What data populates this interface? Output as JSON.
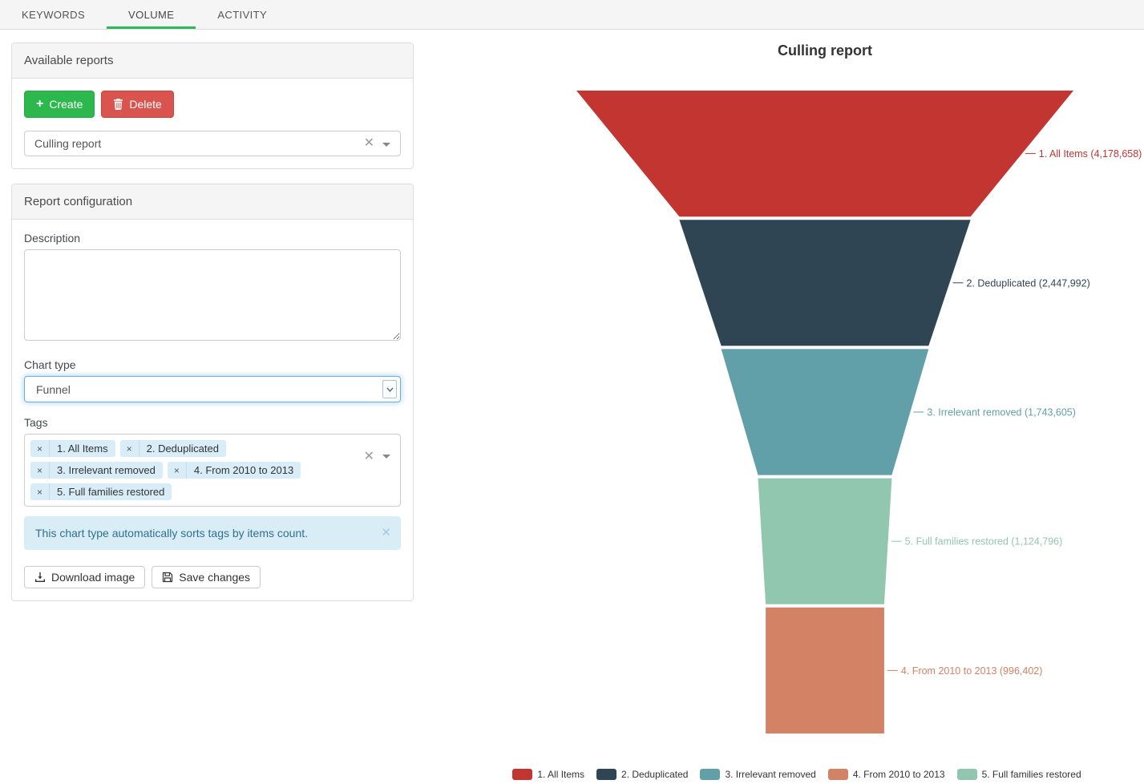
{
  "tabs": [
    {
      "label": "KEYWORDS",
      "active": false
    },
    {
      "label": "VOLUME",
      "active": true
    },
    {
      "label": "ACTIVITY",
      "active": false
    }
  ],
  "available_reports": {
    "title": "Available reports",
    "create_label": "Create",
    "delete_label": "Delete",
    "selected_report": "Culling report"
  },
  "report_config": {
    "title": "Report configuration",
    "description_label": "Description",
    "description_value": "",
    "chart_type_label": "Chart type",
    "chart_type_value": "Funnel",
    "tags_label": "Tags",
    "tags": [
      "1. All Items",
      "2. Deduplicated",
      "3. Irrelevant removed",
      "4. From 2010 to 2013",
      "5. Full families restored"
    ],
    "alert_text": "This chart type automatically sorts tags by items count.",
    "download_label": "Download image",
    "save_label": "Save changes"
  },
  "chart_data": {
    "type": "funnel",
    "title": "Culling report",
    "sort": "descending",
    "label_format": "{name} ({value})",
    "legend_position": "bottom",
    "items": [
      {
        "name": "1. All Items",
        "value": 4178658,
        "color": "#c23531"
      },
      {
        "name": "2. Deduplicated",
        "value": 2447992,
        "color": "#2f4554"
      },
      {
        "name": "3. Irrelevant removed",
        "value": 1743605,
        "color": "#61a0a8"
      },
      {
        "name": "4. From 2010 to 2013",
        "value": 996402,
        "color": "#d48265"
      },
      {
        "name": "5. Full families restored",
        "value": 1124796,
        "color": "#91c7ae"
      }
    ]
  }
}
